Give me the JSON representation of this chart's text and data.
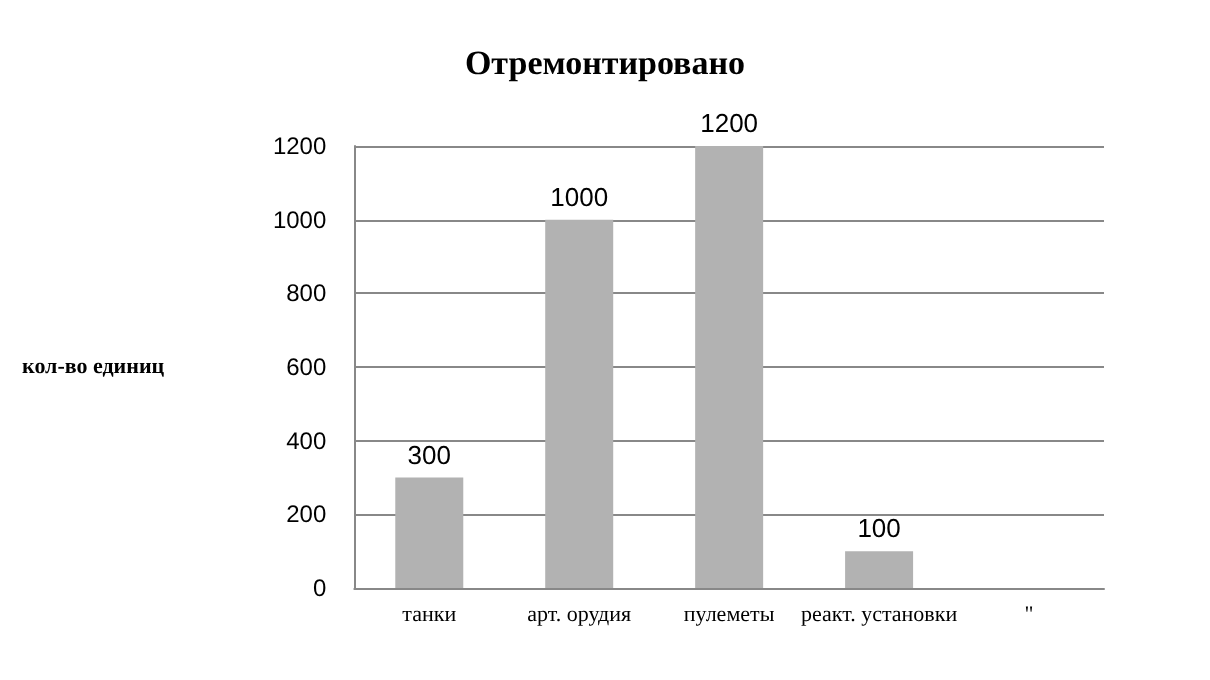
{
  "chart_data": {
    "type": "bar",
    "title": "Отремонтировано",
    "ylabel": "кол-во единиц",
    "categories": [
      "танки",
      "арт. орудия",
      "пулеметы",
      "реакт. установки",
      "\""
    ],
    "values": [
      300,
      1000,
      1200,
      100,
      null
    ],
    "color": "#b2b2b2",
    "ylim": [
      0,
      1200
    ],
    "yticks": [
      0,
      200,
      400,
      600,
      800,
      1000,
      1200
    ],
    "grid": "y",
    "data_labels": true
  }
}
